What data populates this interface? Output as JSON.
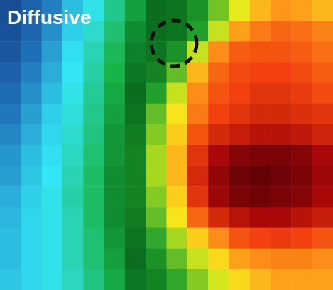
{
  "chart_data": {
    "type": "heatmap",
    "title": "Diffusive",
    "tick_labels": false,
    "color_range": [
      0,
      1
    ],
    "cells": [
      [
        0.03,
        0.07,
        0.12,
        0.2,
        0.26,
        0.33,
        0.4,
        0.45,
        0.46,
        0.5,
        0.57,
        0.64,
        0.7,
        0.73,
        0.72,
        0.7
      ],
      [
        0.04,
        0.08,
        0.14,
        0.22,
        0.28,
        0.35,
        0.42,
        0.45,
        0.46,
        0.52,
        0.62,
        0.72,
        0.76,
        0.78,
        0.77,
        0.75
      ],
      [
        0.05,
        0.1,
        0.16,
        0.24,
        0.3,
        0.37,
        0.43,
        0.46,
        0.5,
        0.62,
        0.74,
        0.79,
        0.8,
        0.8,
        0.79,
        0.77
      ],
      [
        0.07,
        0.12,
        0.18,
        0.25,
        0.31,
        0.38,
        0.44,
        0.48,
        0.56,
        0.7,
        0.78,
        0.81,
        0.82,
        0.82,
        0.81,
        0.79
      ],
      [
        0.09,
        0.14,
        0.2,
        0.26,
        0.32,
        0.39,
        0.45,
        0.52,
        0.62,
        0.74,
        0.8,
        0.82,
        0.84,
        0.84,
        0.83,
        0.81
      ],
      [
        0.11,
        0.16,
        0.22,
        0.27,
        0.33,
        0.4,
        0.46,
        0.56,
        0.66,
        0.76,
        0.82,
        0.84,
        0.86,
        0.86,
        0.85,
        0.84
      ],
      [
        0.13,
        0.18,
        0.23,
        0.28,
        0.34,
        0.41,
        0.47,
        0.58,
        0.68,
        0.8,
        0.86,
        0.88,
        0.9,
        0.9,
        0.89,
        0.87
      ],
      [
        0.15,
        0.2,
        0.24,
        0.29,
        0.35,
        0.41,
        0.48,
        0.6,
        0.7,
        0.84,
        0.92,
        0.95,
        0.96,
        0.96,
        0.95,
        0.92
      ],
      [
        0.16,
        0.21,
        0.25,
        0.3,
        0.36,
        0.42,
        0.48,
        0.6,
        0.7,
        0.86,
        0.94,
        0.97,
        0.98,
        0.97,
        0.96,
        0.93
      ],
      [
        0.18,
        0.22,
        0.26,
        0.31,
        0.36,
        0.42,
        0.48,
        0.58,
        0.68,
        0.84,
        0.93,
        0.96,
        0.97,
        0.96,
        0.95,
        0.92
      ],
      [
        0.19,
        0.23,
        0.26,
        0.3,
        0.36,
        0.42,
        0.47,
        0.56,
        0.66,
        0.78,
        0.86,
        0.9,
        0.92,
        0.92,
        0.9,
        0.88
      ],
      [
        0.2,
        0.23,
        0.26,
        0.3,
        0.35,
        0.41,
        0.46,
        0.53,
        0.6,
        0.68,
        0.74,
        0.8,
        0.82,
        0.83,
        0.82,
        0.8
      ],
      [
        0.2,
        0.23,
        0.26,
        0.3,
        0.35,
        0.4,
        0.45,
        0.5,
        0.56,
        0.62,
        0.67,
        0.72,
        0.74,
        0.75,
        0.75,
        0.74
      ],
      [
        0.21,
        0.23,
        0.26,
        0.29,
        0.34,
        0.39,
        0.44,
        0.48,
        0.53,
        0.58,
        0.63,
        0.67,
        0.7,
        0.72,
        0.72,
        0.72
      ]
    ]
  }
}
